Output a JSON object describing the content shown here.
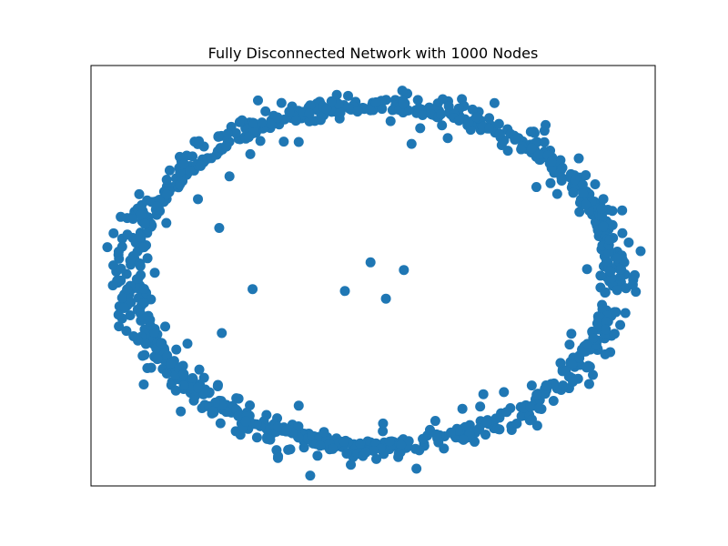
{
  "chart_data": {
    "type": "scatter",
    "title": "Fully Disconnected Network with 1000 Nodes",
    "xlabel": "",
    "ylabel": "",
    "axes_visible": false,
    "grid": false,
    "legend": "none",
    "node_count": 1000,
    "marker_color": "#1f77b4",
    "xlim": [
      -1.1,
      1.1
    ],
    "ylim": [
      -1.1,
      1.1
    ],
    "layout": "spring (ring of isolated nodes)",
    "outliers": [
      {
        "x": -0.6,
        "y": 0.25
      },
      {
        "x": -0.47,
        "y": -0.07
      },
      {
        "x": -0.59,
        "y": -0.3
      },
      {
        "x": -0.01,
        "y": 0.07
      },
      {
        "x": 0.12,
        "y": 0.03
      },
      {
        "x": -0.11,
        "y": -0.08
      },
      {
        "x": 0.05,
        "y": -0.12
      },
      {
        "x": -0.29,
        "y": -0.68
      },
      {
        "x": -0.29,
        "y": 0.7
      },
      {
        "x": 0.15,
        "y": 0.69
      },
      {
        "x": -0.56,
        "y": 0.52
      },
      {
        "x": 0.43,
        "y": -0.62
      }
    ]
  }
}
